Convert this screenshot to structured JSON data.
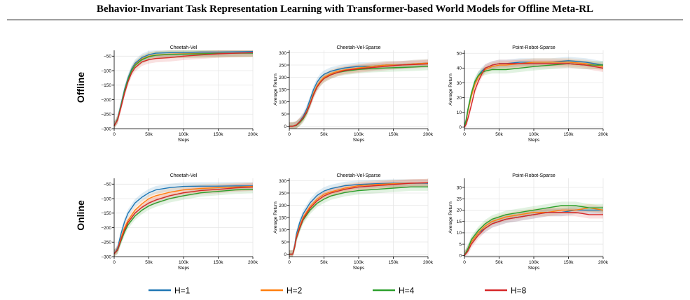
{
  "paper_title": "Behavior-Invariant Task Representation Learning with Transformer-based World Models for Offline Meta-RL",
  "row_labels": [
    "Offline",
    "Online"
  ],
  "legend": [
    {
      "label": "H=1",
      "color": "#1f77b4"
    },
    {
      "label": "H=2",
      "color": "#ff7f0e"
    },
    {
      "label": "H=4",
      "color": "#2ca02c"
    },
    {
      "label": "H=8",
      "color": "#d62728"
    }
  ],
  "chart_data": [
    {
      "type": "line",
      "title": "Cheetah-Vel",
      "xlabel": "Steps",
      "ylabel": "",
      "xlim": [
        0,
        200000
      ],
      "ylim": [
        -300,
        -30
      ],
      "xticks": [
        0,
        50000,
        100000,
        150000,
        200000
      ],
      "xticklabels": [
        "0",
        "50k",
        "100k",
        "150k",
        "200k"
      ],
      "yticks": [
        -300,
        -250,
        -200,
        -150,
        -100,
        -50
      ],
      "yticklabels": [
        "−300",
        "−250",
        "−200",
        "−150",
        "−100",
        "−50"
      ],
      "grid": true,
      "x": [
        0,
        5000,
        10000,
        15000,
        20000,
        25000,
        30000,
        40000,
        50000,
        60000,
        80000,
        100000,
        125000,
        150000,
        175000,
        200000
      ],
      "series": [
        {
          "name": "H=1",
          "values": [
            -290,
            -265,
            -215,
            -165,
            -125,
            -95,
            -75,
            -55,
            -45,
            -40,
            -38,
            -37,
            -36,
            -36,
            -35,
            -34
          ]
        },
        {
          "name": "H=2",
          "values": [
            -290,
            -268,
            -220,
            -170,
            -130,
            -100,
            -80,
            -60,
            -50,
            -46,
            -43,
            -42,
            -41,
            -40,
            -40,
            -39
          ]
        },
        {
          "name": "H=4",
          "values": [
            -290,
            -268,
            -220,
            -170,
            -130,
            -100,
            -82,
            -62,
            -52,
            -47,
            -44,
            -43,
            -42,
            -41,
            -40,
            -40
          ]
        },
        {
          "name": "H=8",
          "values": [
            -290,
            -270,
            -225,
            -178,
            -138,
            -108,
            -90,
            -70,
            -62,
            -58,
            -55,
            -50,
            -46,
            -42,
            -40,
            -38
          ]
        }
      ]
    },
    {
      "type": "line",
      "title": "Cheetah-Vel-Sparse",
      "xlabel": "Steps",
      "ylabel": "Average Return",
      "xlim": [
        0,
        200000
      ],
      "ylim": [
        -10,
        310
      ],
      "xticks": [
        0,
        50000,
        100000,
        150000,
        200000
      ],
      "xticklabels": [
        "0",
        "50k",
        "100k",
        "150k",
        "200k"
      ],
      "yticks": [
        0,
        50,
        100,
        150,
        200,
        250,
        300
      ],
      "yticklabels": [
        "0",
        "50",
        "100",
        "150",
        "200",
        "250",
        "300"
      ],
      "grid": true,
      "x": [
        0,
        5000,
        10000,
        15000,
        20000,
        25000,
        30000,
        35000,
        40000,
        45000,
        50000,
        60000,
        70000,
        80000,
        100000,
        120000,
        140000,
        160000,
        180000,
        200000
      ],
      "series": [
        {
          "name": "H=1",
          "values": [
            0,
            0,
            5,
            20,
            40,
            70,
            110,
            150,
            180,
            200,
            212,
            225,
            232,
            238,
            245,
            245,
            250,
            250,
            255,
            258
          ]
        },
        {
          "name": "H=2",
          "values": [
            0,
            0,
            5,
            18,
            35,
            60,
            95,
            135,
            165,
            185,
            200,
            215,
            225,
            230,
            238,
            245,
            250,
            250,
            255,
            258
          ]
        },
        {
          "name": "H=4",
          "values": [
            0,
            0,
            3,
            15,
            30,
            55,
            90,
            130,
            160,
            180,
            195,
            210,
            220,
            225,
            232,
            236,
            238,
            240,
            242,
            245
          ]
        },
        {
          "name": "H=8",
          "values": [
            0,
            0,
            5,
            18,
            35,
            58,
            90,
            128,
            160,
            180,
            195,
            210,
            220,
            228,
            235,
            240,
            245,
            250,
            252,
            255
          ]
        }
      ]
    },
    {
      "type": "line",
      "title": "Point-Robot-Sparse",
      "xlabel": "Steps",
      "ylabel": "Average Return",
      "xlim": [
        0,
        200000
      ],
      "ylim": [
        -1,
        52
      ],
      "xticks": [
        0,
        50000,
        100000,
        150000,
        200000
      ],
      "xticklabels": [
        "0",
        "50k",
        "100k",
        "150k",
        "200k"
      ],
      "yticks": [
        0,
        10,
        20,
        30,
        40,
        50
      ],
      "yticklabels": [
        "0",
        "10",
        "20",
        "30",
        "40",
        "50"
      ],
      "grid": true,
      "x": [
        0,
        2500,
        5000,
        10000,
        15000,
        20000,
        25000,
        30000,
        40000,
        50000,
        60000,
        80000,
        100000,
        125000,
        150000,
        175000,
        200000
      ],
      "series": [
        {
          "name": "H=1",
          "values": [
            0,
            5,
            12,
            22,
            30,
            35,
            38,
            40,
            42,
            43,
            43,
            44,
            44,
            44,
            45,
            44,
            42
          ]
        },
        {
          "name": "H=2",
          "values": [
            0,
            4,
            11,
            21,
            29,
            34,
            37,
            39,
            41,
            42,
            42,
            43,
            44,
            44,
            44,
            43,
            41
          ]
        },
        {
          "name": "H=4",
          "values": [
            0,
            5,
            12,
            23,
            31,
            35,
            37,
            38,
            39,
            39,
            39,
            40,
            41,
            42,
            43,
            42,
            42
          ]
        },
        {
          "name": "H=8",
          "values": [
            0,
            2,
            6,
            15,
            25,
            31,
            36,
            40,
            42,
            43,
            43,
            43,
            43,
            43,
            43,
            42,
            40
          ]
        }
      ]
    },
    {
      "type": "line",
      "title": "Cheetah-Vel",
      "xlabel": "Steps",
      "ylabel": "",
      "xlim": [
        0,
        200000
      ],
      "ylim": [
        -300,
        -30
      ],
      "xticks": [
        0,
        50000,
        100000,
        150000,
        200000
      ],
      "xticklabels": [
        "0",
        "50k",
        "100k",
        "150k",
        "200k"
      ],
      "yticks": [
        -300,
        -250,
        -200,
        -150,
        -100,
        -50
      ],
      "yticklabels": [
        "−300",
        "−250",
        "−200",
        "−150",
        "−100",
        "−50"
      ],
      "grid": true,
      "x": [
        0,
        5000,
        10000,
        15000,
        20000,
        30000,
        40000,
        50000,
        60000,
        80000,
        100000,
        125000,
        150000,
        175000,
        200000
      ],
      "series": [
        {
          "name": "H=1",
          "values": [
            -290,
            -270,
            -220,
            -180,
            -150,
            -115,
            -95,
            -80,
            -70,
            -62,
            -58,
            -57,
            -57,
            -56,
            -56
          ]
        },
        {
          "name": "H=2",
          "values": [
            -290,
            -275,
            -235,
            -200,
            -175,
            -140,
            -118,
            -100,
            -90,
            -78,
            -70,
            -65,
            -62,
            -60,
            -58
          ]
        },
        {
          "name": "H=4",
          "values": [
            -290,
            -278,
            -245,
            -215,
            -190,
            -160,
            -140,
            -125,
            -115,
            -100,
            -90,
            -80,
            -75,
            -70,
            -68
          ]
        },
        {
          "name": "H=8",
          "values": [
            -290,
            -276,
            -240,
            -208,
            -182,
            -150,
            -130,
            -115,
            -105,
            -90,
            -80,
            -72,
            -68,
            -63,
            -60
          ]
        }
      ]
    },
    {
      "type": "line",
      "title": "Cheetah-Vel-Sparse",
      "xlabel": "Steps",
      "ylabel": "Average Return",
      "xlim": [
        0,
        200000
      ],
      "ylim": [
        -10,
        310
      ],
      "xticks": [
        0,
        50000,
        100000,
        150000,
        200000
      ],
      "xticklabels": [
        "0",
        "50k",
        "100k",
        "150k",
        "200k"
      ],
      "yticks": [
        0,
        50,
        100,
        150,
        200,
        250,
        300
      ],
      "yticklabels": [
        "0",
        "50",
        "100",
        "150",
        "200",
        "250",
        "300"
      ],
      "grid": true,
      "x": [
        0,
        5000,
        8000,
        10000,
        15000,
        20000,
        30000,
        40000,
        50000,
        60000,
        80000,
        100000,
        125000,
        150000,
        175000,
        200000
      ],
      "series": [
        {
          "name": "H=1",
          "values": [
            0,
            0,
            40,
            80,
            130,
            165,
            210,
            240,
            258,
            268,
            280,
            285,
            288,
            290,
            290,
            290
          ]
        },
        {
          "name": "H=2",
          "values": [
            0,
            0,
            35,
            70,
            115,
            150,
            195,
            225,
            245,
            255,
            270,
            280,
            285,
            288,
            290,
            292
          ]
        },
        {
          "name": "H=4",
          "values": [
            0,
            0,
            30,
            62,
            105,
            140,
            180,
            208,
            225,
            238,
            252,
            260,
            265,
            270,
            275,
            275
          ]
        },
        {
          "name": "H=8",
          "values": [
            0,
            0,
            32,
            65,
            108,
            145,
            188,
            218,
            238,
            250,
            265,
            275,
            280,
            285,
            290,
            292
          ]
        }
      ]
    },
    {
      "type": "line",
      "title": "Point-Robot-Sparse",
      "xlabel": "Steps",
      "ylabel": "Average Return",
      "xlim": [
        0,
        200000
      ],
      "ylim": [
        -0.5,
        34
      ],
      "xticks": [
        0,
        50000,
        100000,
        150000,
        200000
      ],
      "xticklabels": [
        "0",
        "50k",
        "100k",
        "150k",
        "200k"
      ],
      "yticks": [
        0,
        5,
        10,
        15,
        20,
        25,
        30
      ],
      "yticklabels": [
        "0",
        "5",
        "10",
        "15",
        "20",
        "25",
        "30"
      ],
      "grid": true,
      "x": [
        0,
        5000,
        10000,
        20000,
        30000,
        40000,
        50000,
        60000,
        80000,
        100000,
        120000,
        140000,
        160000,
        180000,
        200000
      ],
      "series": [
        {
          "name": "H=1",
          "values": [
            0,
            3,
            6,
            10,
            12,
            14,
            15,
            16,
            17,
            18,
            19,
            19,
            20,
            20,
            20
          ]
        },
        {
          "name": "H=2",
          "values": [
            0,
            3,
            6,
            10,
            13,
            15,
            16,
            17,
            18,
            19,
            19,
            20,
            20,
            21,
            20
          ]
        },
        {
          "name": "H=4",
          "values": [
            0,
            3,
            7,
            11,
            14,
            16,
            17,
            18,
            19,
            20,
            21,
            22,
            22,
            21,
            21
          ]
        },
        {
          "name": "H=8",
          "values": [
            0,
            2,
            5,
            9,
            12,
            14,
            15,
            16,
            17,
            18,
            19,
            19,
            19,
            18,
            18
          ]
        }
      ]
    }
  ]
}
